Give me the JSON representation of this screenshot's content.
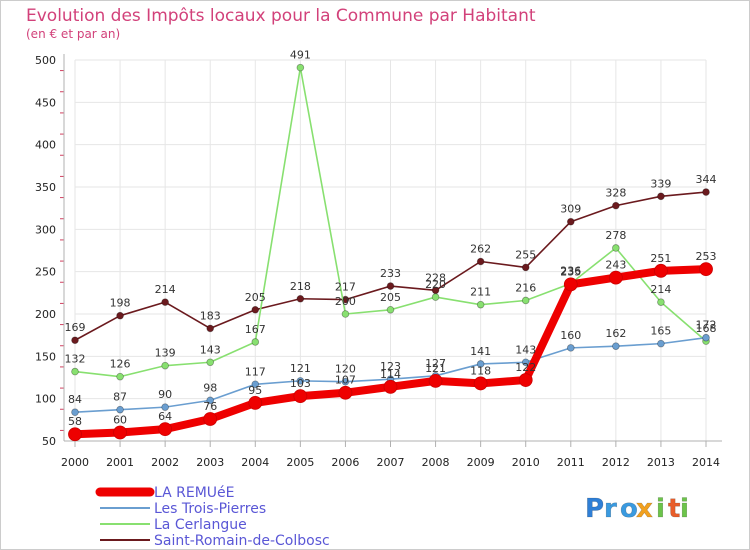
{
  "chart_data": {
    "type": "line",
    "title": "Evolution des Impôts locaux pour la Commune par Habitant",
    "subtitle": "(en € et par an)",
    "x": [
      "2000",
      "2001",
      "2002",
      "2003",
      "2004",
      "2005",
      "2006",
      "2007",
      "2008",
      "2009",
      "2010",
      "2011",
      "2012",
      "2013",
      "2014"
    ],
    "ylim": [
      50,
      500
    ],
    "yticks": [
      50,
      100,
      150,
      200,
      250,
      300,
      350,
      400,
      450,
      500
    ],
    "ytick_labels": [
      "50",
      "100",
      "150",
      "200",
      "250",
      "300",
      "350",
      "400",
      "450",
      "500"
    ],
    "grid": true,
    "series": [
      {
        "name": "Saint-Romain-de-Colbosc",
        "color": "#6b1a1e",
        "values": [
          169,
          198,
          214,
          183,
          205,
          218,
          217,
          233,
          228,
          262,
          255,
          309,
          328,
          339,
          344
        ],
        "labels": [
          "169",
          "198",
          "214",
          "183",
          "205",
          "218",
          "217",
          "233",
          "228",
          "262",
          "255",
          "309",
          "328",
          "339",
          "344"
        ]
      },
      {
        "name": "La Cerlangue",
        "color": "#88e070",
        "values": [
          132,
          126,
          139,
          143,
          167,
          491,
          200,
          205,
          220,
          211,
          216,
          236,
          278,
          214,
          168
        ],
        "labels": [
          "132",
          "126",
          "139",
          "143",
          "167",
          "491",
          "200",
          "205",
          "220",
          "211",
          "216",
          "236",
          "278",
          "214",
          "168"
        ]
      },
      {
        "name": "Les Trois-Pierres",
        "color": "#6a9ed0",
        "values": [
          84,
          87,
          90,
          98,
          117,
          121,
          120,
          123,
          127,
          141,
          143,
          160,
          162,
          165,
          172
        ],
        "labels": [
          "84",
          "87",
          "90",
          "98",
          "117",
          "121",
          "120",
          "123",
          "127",
          "141",
          "143",
          "160",
          "162",
          "165",
          "172"
        ]
      },
      {
        "name": "LA REMUéE",
        "color": "#ee0000",
        "values": [
          58,
          60,
          64,
          76,
          95,
          103,
          107,
          114,
          121,
          118,
          122,
          235,
          243,
          251,
          253
        ],
        "labels": [
          "58",
          "60",
          "64",
          "76",
          "95",
          "103",
          "107",
          "114",
          "121",
          "118",
          "122",
          "235",
          "243",
          "251",
          "253"
        ]
      }
    ],
    "legend_order": [
      "LA REMUéE",
      "Les Trois-Pierres",
      "La Cerlangue",
      "Saint-Romain-de-Colbosc"
    ],
    "legend_position": "bottom-left"
  },
  "logo": {
    "letters": [
      "P",
      "r",
      "o",
      "x",
      "i",
      "t",
      "i"
    ]
  },
  "colors": {
    "title": "#d2417a",
    "axis": "#b0b0b0",
    "grid": "#e6e6e6",
    "legend_text": "#5a57d6"
  }
}
